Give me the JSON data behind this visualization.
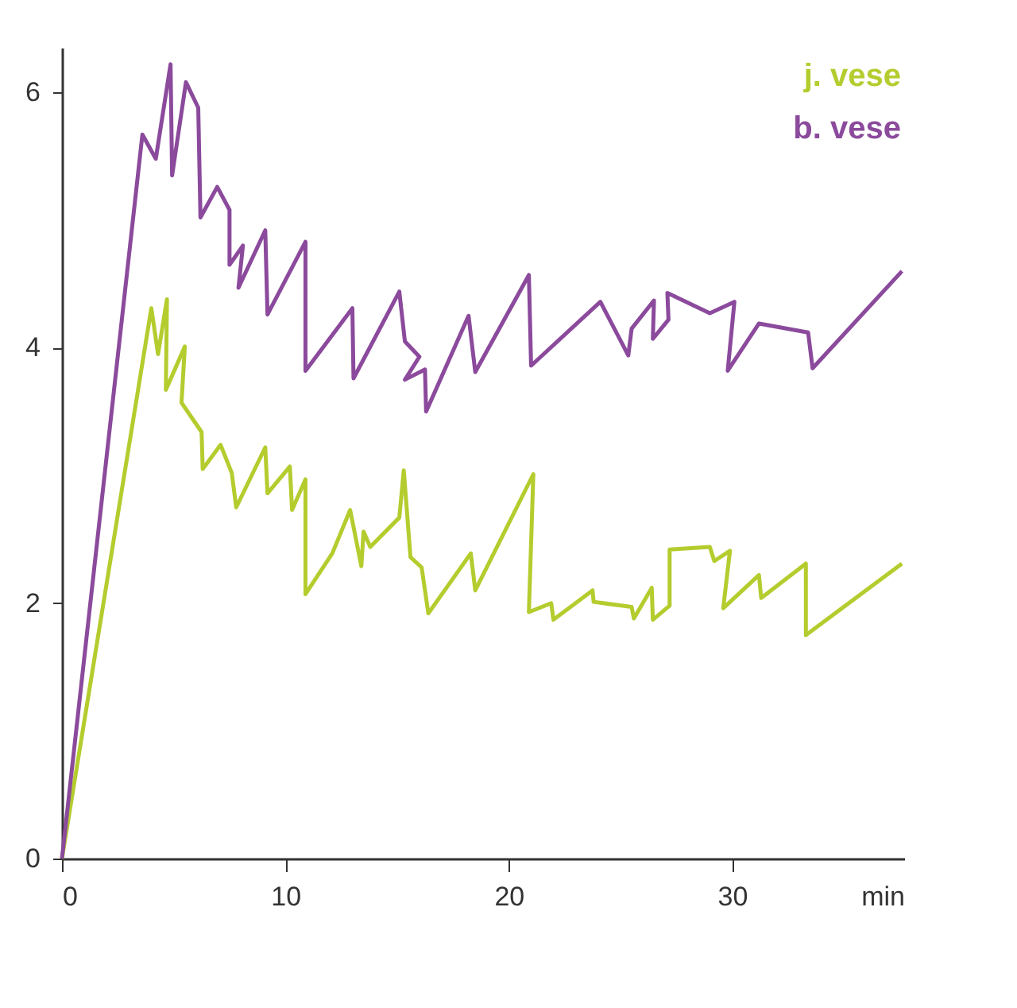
{
  "chart_data": {
    "type": "line",
    "xlabel": "min",
    "xlim": [
      0,
      37.7
    ],
    "ylim": [
      0,
      6.35
    ],
    "xticks": [
      0,
      10,
      20,
      30
    ],
    "yticks": [
      0,
      2,
      4,
      6
    ],
    "grid": false,
    "legend": "top right",
    "marker": "none",
    "line_style": "solid",
    "series": [
      {
        "name": "j. vese",
        "color": "#b5cc2e",
        "x": [
          0,
          4.0,
          4.3,
          4.7,
          4.65,
          5.5,
          5.35,
          6.25,
          6.3,
          7.1,
          7.6,
          7.8,
          9.1,
          9.2,
          10.2,
          10.3,
          10.9,
          10.9,
          12.1,
          12.9,
          13.4,
          13.5,
          13.8,
          15.1,
          15.3,
          15.6,
          16.1,
          16.4,
          18.3,
          18.5,
          21.1,
          20.9,
          21.9,
          22.0,
          23.75,
          23.8,
          25.5,
          25.6,
          26.4,
          26.45,
          27.2,
          27.2,
          29.0,
          29.2,
          29.9,
          29.6,
          31.2,
          31.3,
          33.3,
          33.3,
          37.6
        ],
        "values": [
          0,
          4.31,
          3.95,
          4.38,
          3.67,
          4.01,
          3.57,
          3.34,
          3.05,
          3.24,
          3.02,
          2.75,
          3.22,
          2.86,
          3.07,
          2.73,
          2.97,
          2.07,
          2.39,
          2.73,
          2.29,
          2.56,
          2.44,
          2.67,
          3.04,
          2.36,
          2.28,
          1.92,
          2.39,
          2.1,
          3.01,
          1.93,
          2.0,
          1.87,
          2.1,
          2.01,
          1.97,
          1.88,
          2.12,
          1.87,
          1.98,
          2.42,
          2.44,
          2.33,
          2.41,
          1.96,
          2.22,
          2.04,
          2.31,
          1.75,
          2.31
        ]
      },
      {
        "name": "b. vese",
        "color": "#8b4a9c",
        "x": [
          0,
          3.6,
          4.2,
          4.86,
          4.93,
          5.55,
          6.1,
          6.2,
          6.95,
          7.5,
          7.5,
          8.1,
          7.9,
          9.1,
          9.2,
          10.9,
          10.9,
          13.0,
          13.05,
          15.1,
          15.35,
          16.0,
          15.35,
          16.25,
          16.3,
          18.2,
          18.5,
          20.9,
          21.0,
          24.1,
          25.35,
          25.5,
          26.5,
          26.45,
          27.15,
          27.1,
          29.0,
          30.1,
          29.8,
          31.2,
          33.4,
          33.6,
          37.6
        ],
        "values": [
          0,
          5.67,
          5.48,
          6.22,
          5.35,
          6.08,
          5.88,
          5.02,
          5.26,
          5.08,
          4.65,
          4.8,
          4.47,
          4.92,
          4.26,
          4.83,
          3.82,
          4.31,
          3.76,
          4.44,
          4.05,
          3.93,
          3.75,
          3.83,
          3.5,
          4.25,
          3.81,
          4.57,
          3.86,
          4.36,
          3.94,
          4.15,
          4.37,
          4.07,
          4.22,
          4.43,
          4.27,
          4.36,
          3.82,
          4.19,
          4.12,
          3.84,
          4.6
        ]
      }
    ]
  }
}
